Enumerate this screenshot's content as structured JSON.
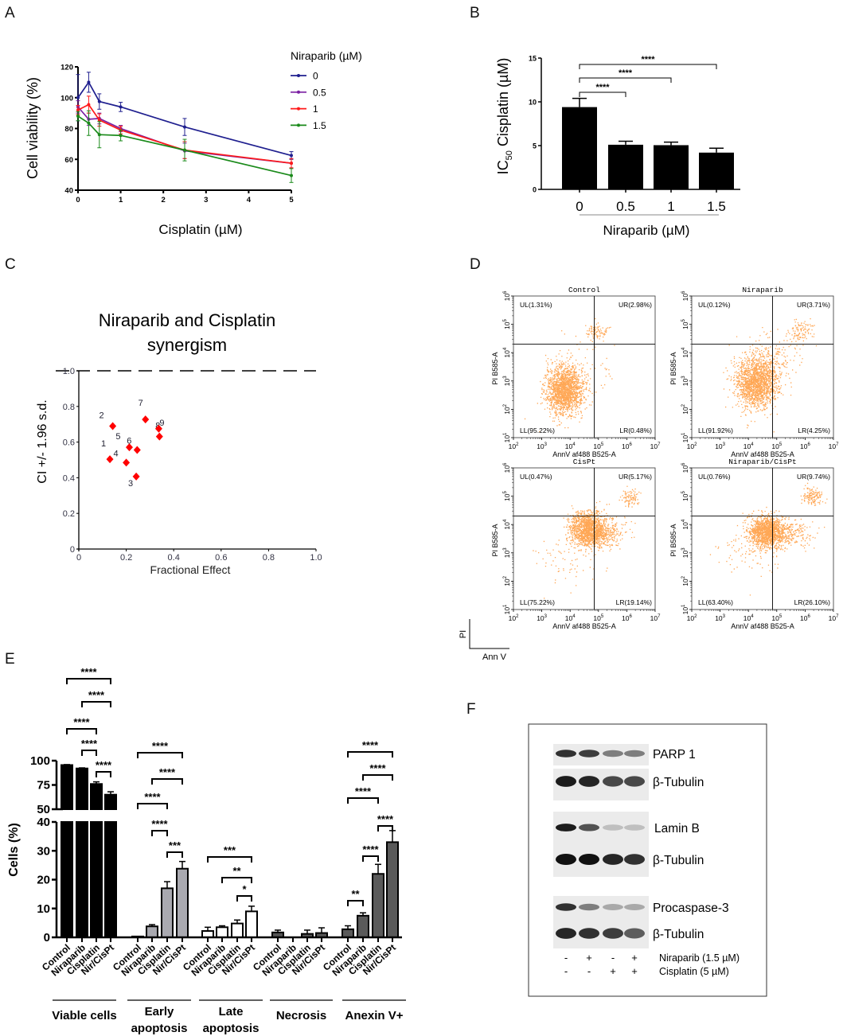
{
  "panel_labels": [
    "A",
    "B",
    "C",
    "D",
    "E",
    "F"
  ],
  "chart_data": [
    {
      "id": "A",
      "type": "line",
      "xlabel": "Cisplatin (µM)",
      "ylabel": "Cell viability (%)",
      "xlim": [
        0,
        5
      ],
      "ylim": [
        40,
        120
      ],
      "xticks": [
        "0",
        "1",
        "2",
        "3",
        "4",
        "5"
      ],
      "yticks": [
        "40",
        "60",
        "80",
        "100",
        "120"
      ],
      "legend_title": "Niraparib (µM)",
      "legend_placement": "right",
      "x": [
        0,
        0.25,
        0.5,
        1,
        2.5,
        5
      ],
      "series": [
        {
          "name": "0",
          "color": "#1f1f8f",
          "values": [
            100,
            110,
            97.5,
            94,
            81,
            62.5
          ],
          "errors": [
            15,
            6.5,
            5,
            3,
            5.5,
            2.5
          ]
        },
        {
          "name": "0.5",
          "color": "#7a1fa2",
          "values": [
            94,
            86,
            86.5,
            80,
            65.5,
            57.5
          ],
          "errors": [
            4,
            4,
            3.5,
            2,
            5,
            3
          ]
        },
        {
          "name": "1",
          "color": "#ff1a1a",
          "values": [
            92,
            95.5,
            85.5,
            79,
            66,
            57.5
          ],
          "errors": [
            3,
            5.5,
            4,
            2.5,
            5.5,
            3
          ]
        },
        {
          "name": "1.5",
          "color": "#1a8a1a",
          "values": [
            88,
            83.5,
            76,
            75.5,
            66,
            49.5
          ],
          "errors": [
            3,
            8,
            8.5,
            3.5,
            7,
            4.5
          ]
        }
      ]
    },
    {
      "id": "B",
      "type": "bar",
      "categories": [
        "0",
        "0.5",
        "1",
        "1.5"
      ],
      "values": [
        9.4,
        5.1,
        5.05,
        4.2
      ],
      "errors": [
        1.0,
        0.4,
        0.35,
        0.5
      ],
      "ylabel": {
        "main": "IC",
        "sub": "50",
        "rest": " Cisplatin (µM)"
      },
      "xlabel": "Niraparib (µM)",
      "ylim": [
        0,
        15
      ],
      "yticks": [
        "0",
        "5",
        "10",
        "15"
      ],
      "significance": [
        {
          "from": 0,
          "to": 1,
          "label": "****"
        },
        {
          "from": 0,
          "to": 2,
          "label": "****"
        },
        {
          "from": 0,
          "to": 3,
          "label": "****"
        }
      ]
    },
    {
      "id": "C",
      "type": "scatter",
      "title": [
        "Niraparib and Cisplatin",
        "synergism"
      ],
      "xlabel": "Fractional Effect",
      "ylabel": "CI +/- 1.96 s.d.",
      "xlim": [
        0,
        1
      ],
      "ylim": [
        0,
        1
      ],
      "xticks": [
        "0",
        "0.2",
        "0.4",
        "0.6",
        "0.8",
        "1.0"
      ],
      "yticks": [
        "0",
        "0.2",
        "0.4",
        "0.6",
        "0.8",
        "1.0"
      ],
      "reference_line": 1.0,
      "points": [
        {
          "label": "1",
          "x": 0.131,
          "y": 0.504
        },
        {
          "label": "2",
          "x": 0.143,
          "y": 0.69
        },
        {
          "label": "3",
          "x": 0.242,
          "y": 0.407
        },
        {
          "label": "4",
          "x": 0.2,
          "y": 0.485
        },
        {
          "label": "5",
          "x": 0.213,
          "y": 0.571
        },
        {
          "label": "6",
          "x": 0.246,
          "y": 0.556
        },
        {
          "label": "7",
          "x": 0.281,
          "y": 0.727
        },
        {
          "label": "8",
          "x": 0.34,
          "y": 0.631
        },
        {
          "label": "9",
          "x": 0.337,
          "y": 0.675
        }
      ]
    },
    {
      "id": "D",
      "type": "scatter",
      "xlabel": "AnnV af488 B525-A",
      "ylabel": "PI B585-A",
      "x_tick_exponents": [
        "2",
        "3",
        "4",
        "5",
        "6",
        "7"
      ],
      "y_tick_exponents": [
        "1",
        "2",
        "3",
        "4",
        "5",
        "6"
      ],
      "tick_base": "10",
      "axis_key": {
        "y": "PI",
        "x": "Ann V"
      },
      "plots": [
        {
          "title": "Control",
          "UL": "UL(1.31%)",
          "UR": "UR(2.98%)",
          "LL": "LL(95.22%)",
          "LR": "LR(0.48%)"
        },
        {
          "title": "Niraparib",
          "UL": "UL(0.12%)",
          "UR": "UR(3.71%)",
          "LL": "LL(91.92%)",
          "LR": "LR(4.25%)"
        },
        {
          "title": "CisPt",
          "UL": "UL(0.47%)",
          "UR": "UR(5.17%)",
          "LL": "LL(75.22%)",
          "LR": "LR(19.14%)"
        },
        {
          "title": "Niraparib/CisPt",
          "UL": "UL(0.76%)",
          "UR": "UR(9.74%)",
          "LL": "LL(63.40%)",
          "LR": "LR(26.10%)"
        }
      ]
    },
    {
      "id": "E",
      "type": "bar",
      "ylabel": "Cells (%)",
      "yticks_lower": [
        "0",
        "10",
        "20",
        "30",
        "40"
      ],
      "yticks_upper": [
        "50",
        "75",
        "100"
      ],
      "axis_break": [
        40,
        50
      ],
      "categories": [
        "Control",
        "Niraparib",
        "Cisplatin",
        "Nir/CisPt"
      ],
      "groups": [
        {
          "name": [
            "Viable cells"
          ],
          "fill": "#000000",
          "values": [
            95.5,
            92,
            76,
            65
          ],
          "errors": [
            0.5,
            0.6,
            2.2,
            3
          ],
          "significance": [
            {
              "from": 0,
              "to": 3,
              "label": "****"
            },
            {
              "from": 1,
              "to": 3,
              "label": "****"
            },
            {
              "from": 0,
              "to": 2,
              "label": "****"
            },
            {
              "from": 1,
              "to": 2,
              "label": "****"
            },
            {
              "from": 2,
              "to": 3,
              "label": "****"
            }
          ]
        },
        {
          "name": [
            "Early",
            "apoptosis"
          ],
          "fill": "#a9a9b0",
          "values": [
            0.3,
            3.8,
            17,
            23.8
          ],
          "errors": [
            0,
            0.6,
            2.3,
            2.5
          ],
          "significance": [
            {
              "from": 0,
              "to": 3,
              "label": "****"
            },
            {
              "from": 1,
              "to": 3,
              "label": "****"
            },
            {
              "from": 0,
              "to": 2,
              "label": "****"
            },
            {
              "from": 1,
              "to": 2,
              "label": "****"
            },
            {
              "from": 2,
              "to": 3,
              "label": "***"
            }
          ]
        },
        {
          "name": [
            "Late",
            "apoptosis"
          ],
          "fill": "#ffffff",
          "values": [
            2.2,
            3.5,
            4.8,
            9
          ],
          "errors": [
            1.3,
            0.5,
            1.2,
            1.8
          ],
          "significance": [
            {
              "from": 0,
              "to": 3,
              "label": "***"
            },
            {
              "from": 1,
              "to": 3,
              "label": "**"
            },
            {
              "from": 2,
              "to": 3,
              "label": "*"
            }
          ]
        },
        {
          "name": [
            "Necrosis"
          ],
          "fill": "#555555",
          "values": [
            1.7,
            0,
            1.2,
            1.5
          ],
          "errors": [
            0.8,
            0,
            1.3,
            1.8
          ],
          "significance": []
        },
        {
          "name": [
            "Anexin V+"
          ],
          "fill": "#5a5a5a",
          "values": [
            2.8,
            7.5,
            22,
            33
          ],
          "errors": [
            1.2,
            1.0,
            3.3,
            4
          ],
          "significance": [
            {
              "from": 0,
              "to": 3,
              "label": "****"
            },
            {
              "from": 1,
              "to": 3,
              "label": "****"
            },
            {
              "from": 0,
              "to": 2,
              "label": "****"
            },
            {
              "from": 2,
              "to": 3,
              "label": "****"
            },
            {
              "from": 1,
              "to": 2,
              "label": "****"
            },
            {
              "from": 0,
              "to": 1,
              "label": "**"
            }
          ]
        }
      ]
    }
  ],
  "western_blot": {
    "rows": [
      {
        "label": "PARP 1",
        "intensity": [
          0.85,
          0.8,
          0.5,
          0.5
        ]
      },
      {
        "label": "β-Tubulin",
        "intensity": [
          0.95,
          0.9,
          0.75,
          0.75
        ]
      },
      {
        "label": "Lamin B",
        "intensity": [
          0.95,
          0.7,
          0.2,
          0.2
        ]
      },
      {
        "label": "β-Tubulin",
        "intensity": [
          1,
          1,
          0.9,
          0.85
        ]
      },
      {
        "label": "Procaspase-3",
        "intensity": [
          0.85,
          0.5,
          0.3,
          0.3
        ]
      },
      {
        "label": "β-Tubulin",
        "intensity": [
          0.9,
          0.85,
          0.8,
          0.65
        ]
      }
    ],
    "treatments": [
      {
        "label": "Niraparib (1.5 µM)",
        "signs": [
          "-",
          "+",
          "-",
          "+"
        ]
      },
      {
        "label": "Cisplatin  (5 µM)",
        "signs": [
          "-",
          "-",
          "+",
          "+"
        ]
      }
    ]
  }
}
